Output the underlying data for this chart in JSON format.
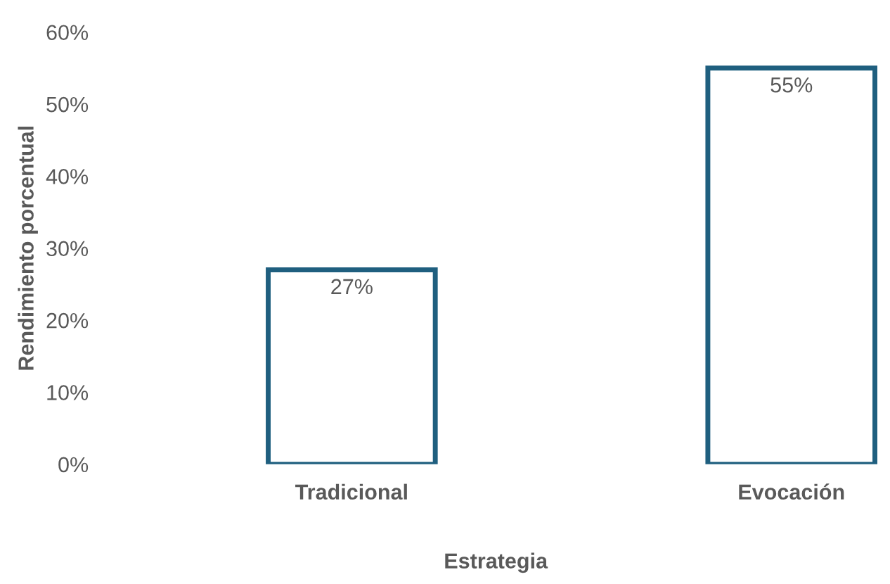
{
  "chart_data": {
    "type": "bar",
    "xlabel": "Estrategia",
    "ylabel": "Rendimiento porcentual",
    "categories": [
      "Tradicional",
      "Evocación"
    ],
    "series": [
      {
        "color": "#1f5f7f",
        "values": [
          27,
          55
        ],
        "value_labels": [
          "27%",
          "55%"
        ]
      }
    ],
    "ylim": [
      0,
      60
    ],
    "yticks": [
      {
        "value": 0,
        "label": "0%"
      },
      {
        "value": 10,
        "label": "10%"
      },
      {
        "value": 20,
        "label": "20%"
      },
      {
        "value": 30,
        "label": "30%"
      },
      {
        "value": 40,
        "label": "40%"
      },
      {
        "value": 50,
        "label": "50%"
      },
      {
        "value": 60,
        "label": "60%"
      }
    ],
    "grid": false,
    "legend": false
  }
}
